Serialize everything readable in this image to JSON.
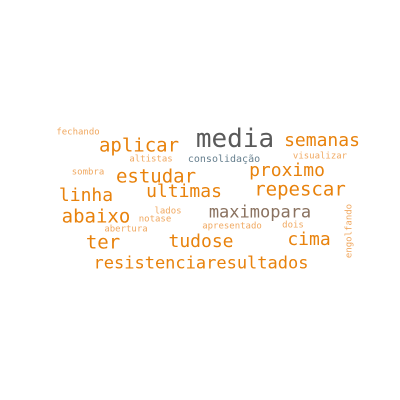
{
  "colors": {
    "background": "#ffffff",
    "orange": "#e8820c",
    "light_orange": "#f0a860",
    "dark_gray": "#5a5a5a",
    "gray_blue": "#667f8e",
    "brown": "#8a7260"
  },
  "words": [
    {
      "text": "media",
      "color": "dark_gray"
    },
    {
      "text": "aplicar",
      "color": "orange"
    },
    {
      "text": "semanas",
      "color": "orange"
    },
    {
      "text": "proximo",
      "color": "orange"
    },
    {
      "text": "estudar",
      "color": "orange"
    },
    {
      "text": "repescar",
      "color": "orange"
    },
    {
      "text": "linha",
      "color": "orange"
    },
    {
      "text": "ultimas",
      "color": "orange"
    },
    {
      "text": "abaixo",
      "color": "orange"
    },
    {
      "text": "maximopara",
      "color": "brown"
    },
    {
      "text": "ter",
      "color": "orange"
    },
    {
      "text": "tudose",
      "color": "orange"
    },
    {
      "text": "cima",
      "color": "orange"
    },
    {
      "text": "resistenciaresultados",
      "color": "orange"
    },
    {
      "text": "fechando",
      "color": "light_orange"
    },
    {
      "text": "altistas",
      "color": "light_orange"
    },
    {
      "text": "consolidação",
      "color": "gray_blue"
    },
    {
      "text": "visualizar",
      "color": "light_orange"
    },
    {
      "text": "sombra",
      "color": "light_orange"
    },
    {
      "text": "lados",
      "color": "light_orange"
    },
    {
      "text": "notase",
      "color": "light_orange"
    },
    {
      "text": "dois",
      "color": "light_orange"
    },
    {
      "text": "abertura",
      "color": "light_orange"
    },
    {
      "text": "apresentado",
      "color": "light_orange"
    },
    {
      "text": "engolfando",
      "color": "light_orange"
    }
  ]
}
